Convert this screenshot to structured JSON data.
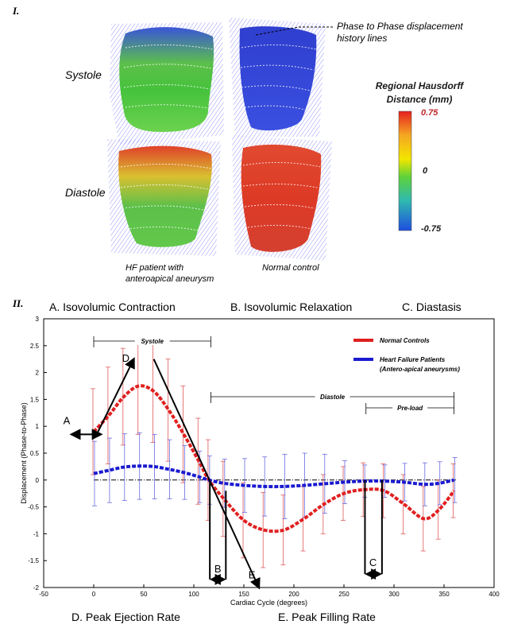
{
  "panel_I": {
    "label": "I.",
    "row_labels": [
      "Systole",
      "Diastole"
    ],
    "col_labels": [
      "HF patient with\nanteroapical aneurysm",
      "Normal control"
    ],
    "callout": "Phase to Phase displacement\nhistory lines",
    "colorbar": {
      "title": "Regional Hausdorff\nDistance (mm)",
      "max": "0.75",
      "mid": "0",
      "min": "-0.75",
      "colors": [
        "#e5201f",
        "#f5a623",
        "#f2e600",
        "#5fd23a",
        "#2fb9b0",
        "#1f4ee0"
      ]
    }
  },
  "panel_II": {
    "label": "II.",
    "segments_top": [
      "A. Isovolumic Contraction",
      "B. Isovolumic Relaxation",
      "C. Diastasis"
    ],
    "segments_bottom": [
      "D. Peak Ejection Rate",
      "E. Peak Filling Rate"
    ],
    "brackets": [
      "Systole",
      "Diastole",
      "Pre-load"
    ],
    "markers": [
      "A",
      "B",
      "C",
      "D",
      "E"
    ]
  },
  "chart_data": {
    "type": "line",
    "xlabel": "Cardiac Cycle (degrees)",
    "ylabel": "Displacement (Phase-to-Phase)",
    "xlim": [
      -50,
      400
    ],
    "ylim": [
      -2,
      3
    ],
    "xticks": [
      -50,
      0,
      50,
      100,
      150,
      200,
      250,
      300,
      350,
      400
    ],
    "yticks": [
      -2,
      -1.5,
      -1,
      -0.5,
      0,
      0.5,
      1,
      1.5,
      2,
      2.5,
      3
    ],
    "legend_position": "top-right",
    "x": [
      0,
      15,
      30,
      45,
      60,
      75,
      90,
      105,
      115,
      130,
      150,
      170,
      190,
      210,
      230,
      250,
      270,
      290,
      310,
      330,
      345,
      360
    ],
    "series": [
      {
        "name": "Normal Controls",
        "color": "#e02020",
        "values": [
          0.9,
          1.2,
          1.55,
          1.75,
          1.65,
          1.3,
          0.85,
          0.35,
          0.0,
          -0.35,
          -0.75,
          -0.93,
          -0.93,
          -0.72,
          -0.45,
          -0.25,
          -0.18,
          -0.2,
          -0.45,
          -0.72,
          -0.55,
          -0.2
        ],
        "error": [
          0.8,
          0.9,
          0.9,
          0.9,
          0.95,
          0.95,
          0.9,
          0.8,
          0.75,
          0.7,
          0.7,
          0.7,
          0.65,
          0.6,
          0.55,
          0.5,
          0.5,
          0.5,
          0.55,
          0.6,
          0.55,
          0.5
        ]
      },
      {
        "name": "Heart Failure Patients\n(Antero-apical aneurysms)",
        "color": "#1a1ad0",
        "values": [
          0.12,
          0.18,
          0.24,
          0.26,
          0.25,
          0.2,
          0.14,
          0.06,
          0.0,
          -0.06,
          -0.1,
          -0.12,
          -0.12,
          -0.1,
          -0.07,
          -0.04,
          -0.02,
          -0.02,
          -0.04,
          -0.08,
          -0.06,
          0.0
        ],
        "error": [
          0.6,
          0.6,
          0.62,
          0.62,
          0.6,
          0.55,
          0.5,
          0.48,
          0.45,
          0.45,
          0.5,
          0.55,
          0.6,
          0.6,
          0.55,
          0.4,
          0.3,
          0.3,
          0.35,
          0.4,
          0.4,
          0.42
        ]
      }
    ]
  }
}
